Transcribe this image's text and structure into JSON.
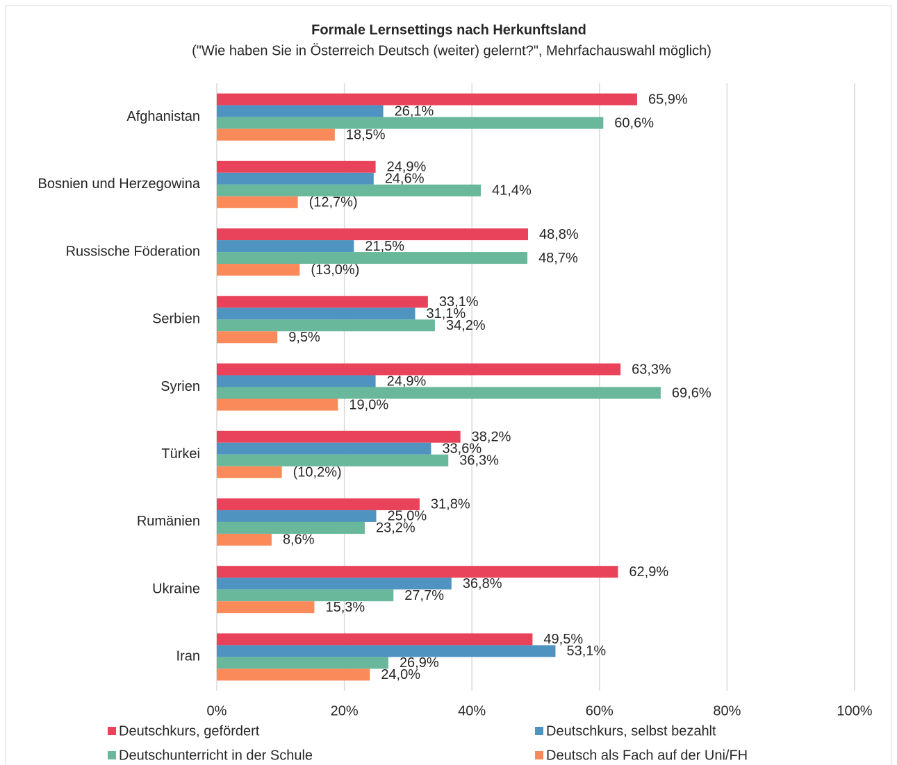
{
  "chart_data": {
    "type": "hbar",
    "title": "Formale Lernsettings nach Herkunftsland",
    "subtitle": "(\"Wie haben Sie in Österreich Deutsch (weiter) gelernt?\", Mehrfachauswahl möglich)",
    "categories": [
      "Afghanistan",
      "Bosnien und Herzegowina",
      "Russische Föderation",
      "Serbien",
      "Syrien",
      "Türkei",
      "Rumänien",
      "Ukraine",
      "Iran"
    ],
    "series": [
      {
        "name": "Deutschkurs, gefördert",
        "color": "#e8435a",
        "values": [
          65.9,
          24.9,
          48.8,
          33.1,
          63.3,
          38.2,
          31.8,
          62.9,
          49.5
        ],
        "value_labels": [
          "65,9%",
          "24,9%",
          "48,8%",
          "33,1%",
          "63,3%",
          "38,2%",
          "31,8%",
          "62,9%",
          "49,5%"
        ]
      },
      {
        "name": "Deutschkurs, selbst bezahlt",
        "color": "#4f93c0",
        "values": [
          26.1,
          24.6,
          21.5,
          31.1,
          24.9,
          33.6,
          25.0,
          36.8,
          53.1
        ],
        "value_labels": [
          "26,1%",
          "24,6%",
          "21,5%",
          "31,1%",
          "24,9%",
          "33,6%",
          "25,0%",
          "36,8%",
          "53,1%"
        ]
      },
      {
        "name": "Deutschunterricht in der Schule",
        "color": "#6ab89c",
        "values": [
          60.6,
          41.4,
          48.7,
          34.2,
          69.6,
          36.3,
          23.2,
          27.7,
          26.9
        ],
        "value_labels": [
          "60,6%",
          "41,4%",
          "48,7%",
          "34,2%",
          "69,6%",
          "36,3%",
          "23,2%",
          "27,7%",
          "26,9%"
        ]
      },
      {
        "name": "Deutsch als Fach auf der Uni/FH",
        "color": "#fa8a5a",
        "values": [
          18.5,
          12.7,
          13.0,
          9.5,
          19.0,
          10.2,
          8.6,
          15.3,
          24.0
        ],
        "value_labels": [
          "18,5%",
          "(12,7%)",
          "(13,0%)",
          "9,5%",
          "19,0%",
          "(10,2%)",
          "8,6%",
          "15,3%",
          "24,0%"
        ]
      }
    ],
    "xlim": [
      0,
      100
    ],
    "xticks": [
      {
        "value": 0,
        "label": "0%"
      },
      {
        "value": 20,
        "label": "20%"
      },
      {
        "value": 40,
        "label": "40%"
      },
      {
        "value": 60,
        "label": "60%"
      },
      {
        "value": 80,
        "label": "80%"
      },
      {
        "value": 100,
        "label": "100%"
      }
    ],
    "grid": true
  }
}
